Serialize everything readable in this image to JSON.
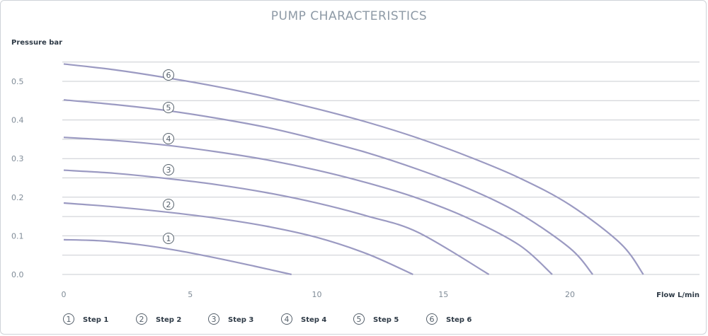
{
  "chart_data": {
    "type": "line",
    "title": "PUMP CHARACTERISTICS",
    "ylabel": "Pressure bar",
    "xlabel": "Flow L/min",
    "xlim": [
      0,
      25
    ],
    "ylim": [
      0,
      0.55
    ],
    "x_ticks": [
      0,
      5,
      10,
      15,
      20
    ],
    "y_ticks": [
      0.0,
      0.1,
      0.2,
      0.3,
      0.4,
      0.5
    ],
    "y_tick_labels": [
      "0.0",
      "0.1",
      "0.2",
      "0.3",
      "0.4",
      "0.5"
    ],
    "grid": true,
    "legend_position": "bottom",
    "series": [
      {
        "name": "Step 1",
        "marker": "1",
        "x": [
          0,
          1.5,
          3,
          4.5,
          6,
          7.5,
          9
        ],
        "y": [
          0.09,
          0.087,
          0.077,
          0.062,
          0.043,
          0.022,
          0.0
        ]
      },
      {
        "name": "Step 2",
        "marker": "2",
        "x": [
          0,
          2,
          4,
          6,
          8,
          10,
          12,
          13.8
        ],
        "y": [
          0.185,
          0.175,
          0.162,
          0.146,
          0.125,
          0.096,
          0.053,
          0.0
        ]
      },
      {
        "name": "Step 3",
        "marker": "3",
        "x": [
          0,
          2,
          4,
          6,
          8,
          10,
          12,
          14,
          16.8
        ],
        "y": [
          0.27,
          0.262,
          0.249,
          0.233,
          0.212,
          0.185,
          0.151,
          0.109,
          0.0
        ]
      },
      {
        "name": "Step 4",
        "marker": "4",
        "x": [
          0,
          2,
          4,
          6,
          8,
          10,
          12,
          14,
          16,
          18,
          19.3
        ],
        "y": [
          0.355,
          0.347,
          0.335,
          0.318,
          0.297,
          0.27,
          0.237,
          0.197,
          0.145,
          0.076,
          0.0
        ]
      },
      {
        "name": "Step 5",
        "marker": "5",
        "x": [
          0,
          2,
          4,
          6,
          8,
          10,
          12,
          14,
          16,
          18,
          20,
          20.9
        ],
        "y": [
          0.452,
          0.44,
          0.425,
          0.405,
          0.381,
          0.35,
          0.315,
          0.272,
          0.222,
          0.158,
          0.068,
          0.0
        ]
      },
      {
        "name": "Step 6",
        "marker": "6",
        "x": [
          0,
          2,
          4,
          6,
          8,
          10,
          12,
          14,
          16,
          18,
          20,
          22,
          22.9
        ],
        "y": [
          0.545,
          0.53,
          0.51,
          0.487,
          0.46,
          0.429,
          0.394,
          0.353,
          0.305,
          0.25,
          0.18,
          0.08,
          0.0
        ]
      }
    ],
    "colors": {
      "curve": "#9b9ac2",
      "grid": "#c9ccd1",
      "title": "#8e9aa6",
      "text": "#2e3a46",
      "tick": "#7f8b97"
    }
  }
}
